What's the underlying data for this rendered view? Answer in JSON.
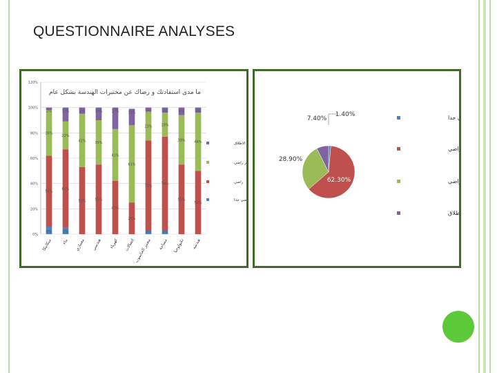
{
  "slide": {
    "title": "QUESTIONNAIRE ANALYSES"
  },
  "chart_data": [
    {
      "type": "bar",
      "stacked": true,
      "title": "ما مدى استفادتك و رضاك عن مختبرات الهندسة بشكل عام",
      "ylim": [
        0,
        1.2
      ],
      "y_ticks": [
        "0%",
        "20%",
        "40%",
        "60%",
        "80%",
        "100%",
        "120%"
      ],
      "categories": [
        "ميكانيكا",
        "بناء",
        "معماري",
        "هندسي",
        "كهرباء",
        "اتصالات",
        "مختبر الحاسوب",
        "مساحة",
        "تكنولوجيا",
        "هندسة"
      ],
      "series": [
        {
          "name": "راضي جدا",
          "color": "#4f81bd",
          "values": [
            0.06,
            0.05,
            0.0,
            0.0,
            0.0,
            0.0,
            0.03,
            0.03,
            0.0,
            0.0
          ]
        },
        {
          "name": "راضي",
          "color": "#c0504d",
          "values": [
            0.56,
            0.62,
            0.53,
            0.55,
            0.42,
            0.25,
            0.71,
            0.74,
            0.55,
            0.5
          ]
        },
        {
          "name": "غير راضي",
          "color": "#9bbb59",
          "values": [
            0.36,
            0.22,
            0.42,
            0.35,
            0.41,
            0.61,
            0.23,
            0.19,
            0.39,
            0.46
          ]
        },
        {
          "name": "غير راضي على الاطلاق",
          "color": "#8064a2",
          "values": [
            0.02,
            0.11,
            0.05,
            0.1,
            0.17,
            0.13,
            0.03,
            0.04,
            0.06,
            0.04
          ]
        }
      ],
      "data_labels": [
        [
          "6%",
          "56%",
          "36%",
          "2%"
        ],
        [
          "5%",
          "62%",
          "22%",
          "11%"
        ],
        [
          "0%",
          "53%",
          "42%",
          "5%"
        ],
        [
          "0%",
          "55%",
          "35%",
          "10%"
        ],
        [
          "0%",
          "42%",
          "41%",
          "17%"
        ],
        [
          "0%",
          "25%",
          "61%",
          "13%"
        ],
        [
          "3%",
          "71%",
          "23%",
          "3%"
        ],
        [
          "3%",
          "74%",
          "19%",
          "4%"
        ],
        [
          "0%",
          "55%",
          "39%",
          "6%"
        ],
        [
          "0%",
          "50%",
          "46%",
          "4%"
        ]
      ],
      "legend": "right"
    },
    {
      "type": "pie",
      "slices": [
        {
          "label": "راضي جدا",
          "value": 1.4,
          "text": "1.40%",
          "color": "#4f81bd"
        },
        {
          "label": "راضي",
          "value": 62.3,
          "text": "62.30%",
          "color": "#c0504d"
        },
        {
          "label": "غير راضي",
          "value": 28.9,
          "text": "28.90%",
          "color": "#9bbb59"
        },
        {
          "label": "غير راضي على الاطلاق",
          "value": 7.4,
          "text": "7.40%",
          "color": "#8064a2"
        }
      ],
      "legend": "right"
    }
  ]
}
